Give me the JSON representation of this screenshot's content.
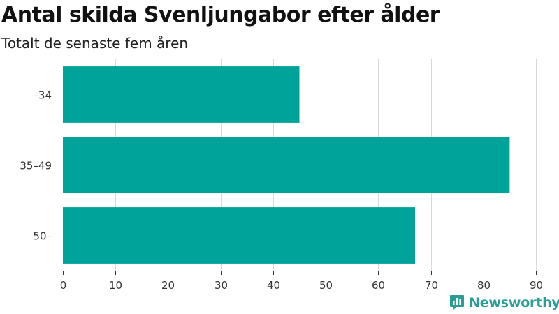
{
  "chart_data": {
    "type": "bar",
    "orientation": "horizontal",
    "title": "Antal skilda Svenljungabor efter ålder",
    "subtitle": "Totalt de senaste fem åren",
    "categories": [
      "–34",
      "35–49",
      "50–"
    ],
    "values": [
      45,
      85,
      67
    ],
    "x_ticks": [
      0,
      10,
      20,
      30,
      40,
      50,
      60,
      70,
      80,
      90
    ],
    "xlim": [
      0,
      90
    ],
    "grid": "vertical",
    "bar_color": "#00a39a"
  },
  "branding": {
    "name": "Newsworthy",
    "icon": "newsworthy-logo-icon",
    "color": "#2a9d95"
  }
}
